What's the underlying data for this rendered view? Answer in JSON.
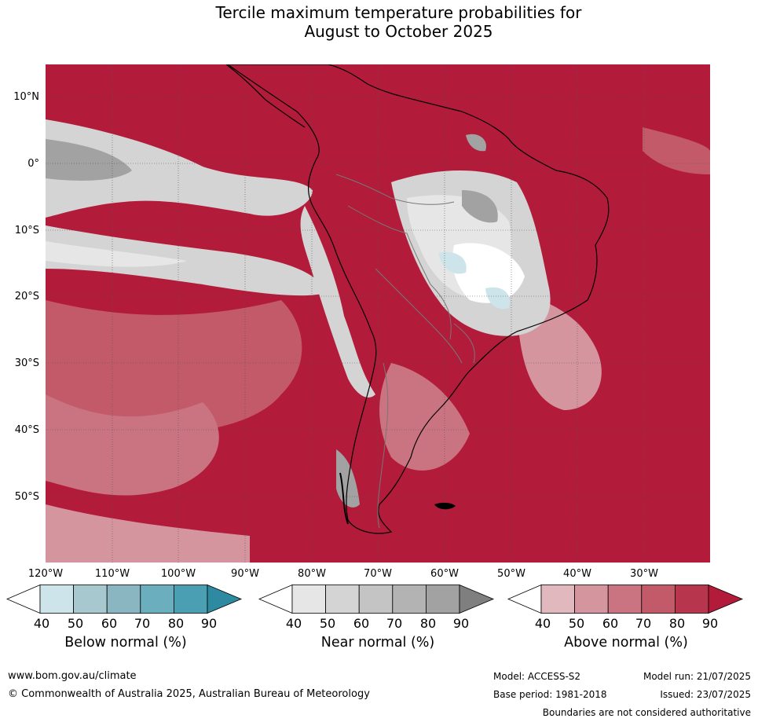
{
  "title_line1": "Tercile maximum temperature probabilities for",
  "title_line2": "August to October 2025",
  "lat_labels": [
    "10°N",
    "0°",
    "10°S",
    "20°S",
    "30°S",
    "40°S",
    "50°S"
  ],
  "lon_labels": [
    "120°W",
    "110°W",
    "100°W",
    "90°W",
    "80°W",
    "70°W",
    "60°W",
    "50°W",
    "40°W",
    "30°W"
  ],
  "legend": {
    "below": {
      "title": "Below normal (%)",
      "ticks": [
        "40",
        "50",
        "60",
        "70",
        "80",
        "90"
      ],
      "colors": [
        "#ffffff",
        "#cde4ea",
        "#a8c8d0",
        "#8ab6c2",
        "#6baebd",
        "#4a9fb2",
        "#2e8aa0"
      ]
    },
    "near": {
      "title": "Near normal (%)",
      "ticks": [
        "40",
        "50",
        "60",
        "70",
        "80",
        "90"
      ],
      "colors": [
        "#ffffff",
        "#e6e6e6",
        "#d4d4d4",
        "#c4c4c4",
        "#b3b3b3",
        "#a2a2a2",
        "#7f7f7f"
      ]
    },
    "above": {
      "title": "Above normal (%)",
      "ticks": [
        "40",
        "50",
        "60",
        "70",
        "80",
        "90"
      ],
      "colors": [
        "#ffffff",
        "#e2b8bf",
        "#d4959f",
        "#c97480",
        "#c25a69",
        "#b7354d",
        "#b31b3a"
      ]
    }
  },
  "footer": {
    "url": "www.bom.gov.au/climate",
    "copyright": "© Commonwealth of Australia 2025, Australian Bureau of Meteorology",
    "model": "Model: ACCESS-S2",
    "base_period": "Base period: 1981-2018",
    "model_run": "Model run: 21/07/2025",
    "issued": "Issued: 23/07/2025",
    "disclaimer": "Boundaries are not considered authoritative"
  }
}
